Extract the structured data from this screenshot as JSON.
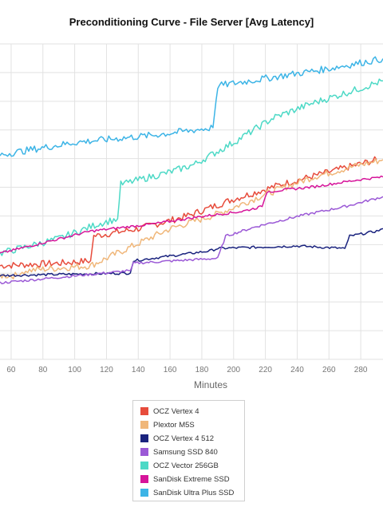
{
  "chart_data": {
    "type": "line",
    "title": "Preconditioning Curve - File Server [Avg Latency]",
    "xlabel": "Minutes",
    "ylabel": "",
    "x_ticks": [
      60,
      80,
      100,
      120,
      140,
      160,
      180,
      200,
      220,
      240,
      260,
      280
    ],
    "x_range": [
      53,
      294
    ],
    "y_range": [
      0,
      12.8
    ],
    "grid": "on",
    "legend_placement": "bottom-center",
    "series": [
      {
        "name": "OCZ Vertex 4",
        "color": "#e74c3c",
        "points": [
          [
            53,
            3.8
          ],
          [
            90,
            3.9
          ],
          [
            110,
            4.0
          ],
          [
            112,
            5.0
          ],
          [
            140,
            5.3
          ],
          [
            170,
            5.8
          ],
          [
            200,
            6.5
          ],
          [
            230,
            7.1
          ],
          [
            260,
            7.6
          ],
          [
            290,
            8.1
          ]
        ]
      },
      {
        "name": "Plextor M5S",
        "color": "#f0b77a",
        "points": [
          [
            53,
            3.4
          ],
          [
            65,
            3.4
          ],
          [
            68,
            3.6
          ],
          [
            110,
            3.8
          ],
          [
            130,
            4.4
          ],
          [
            160,
            5.3
          ],
          [
            190,
            5.9
          ],
          [
            220,
            6.7
          ],
          [
            250,
            7.4
          ],
          [
            280,
            7.9
          ],
          [
            294,
            8.1
          ]
        ]
      },
      {
        "name": "OCZ Vertex 4 512",
        "color": "#1a237e",
        "points": [
          [
            53,
            3.4
          ],
          [
            135,
            3.5
          ],
          [
            137,
            4.0
          ],
          [
            185,
            4.4
          ],
          [
            190,
            4.5
          ],
          [
            240,
            4.6
          ],
          [
            270,
            4.5
          ],
          [
            273,
            5.0
          ],
          [
            290,
            5.2
          ],
          [
            294,
            5.3
          ]
        ]
      },
      {
        "name": "Samsung SSD 840",
        "color": "#9b59d6",
        "points": [
          [
            53,
            3.1
          ],
          [
            135,
            3.6
          ],
          [
            137,
            3.9
          ],
          [
            190,
            4.1
          ],
          [
            195,
            5.0
          ],
          [
            215,
            5.4
          ],
          [
            240,
            5.8
          ],
          [
            270,
            6.2
          ],
          [
            294,
            6.6
          ]
        ]
      },
      {
        "name": "OCZ Vector 256GB",
        "color": "#4dd9c6",
        "points": [
          [
            53,
            4.3
          ],
          [
            90,
            4.9
          ],
          [
            115,
            5.5
          ],
          [
            127,
            5.7
          ],
          [
            129,
            7.1
          ],
          [
            160,
            7.6
          ],
          [
            175,
            7.9
          ],
          [
            200,
            8.8
          ],
          [
            225,
            9.8
          ],
          [
            250,
            10.4
          ],
          [
            275,
            10.9
          ],
          [
            294,
            11.3
          ]
        ]
      },
      {
        "name": "SanDisk Extreme SSD",
        "color": "#d6149a",
        "points": [
          [
            53,
            4.3
          ],
          [
            110,
            5.2
          ],
          [
            150,
            5.5
          ],
          [
            180,
            5.8
          ],
          [
            205,
            6.0
          ],
          [
            218,
            6.2
          ],
          [
            221,
            6.8
          ],
          [
            250,
            7.0
          ],
          [
            280,
            7.3
          ],
          [
            294,
            7.4
          ]
        ]
      },
      {
        "name": "SanDisk Ultra Plus SSD",
        "color": "#3cb4e6",
        "points": [
          [
            53,
            8.3
          ],
          [
            100,
            8.8
          ],
          [
            150,
            9.1
          ],
          [
            187,
            9.4
          ],
          [
            190,
            11.1
          ],
          [
            230,
            11.5
          ],
          [
            260,
            11.8
          ],
          [
            294,
            12.2
          ]
        ]
      }
    ]
  }
}
